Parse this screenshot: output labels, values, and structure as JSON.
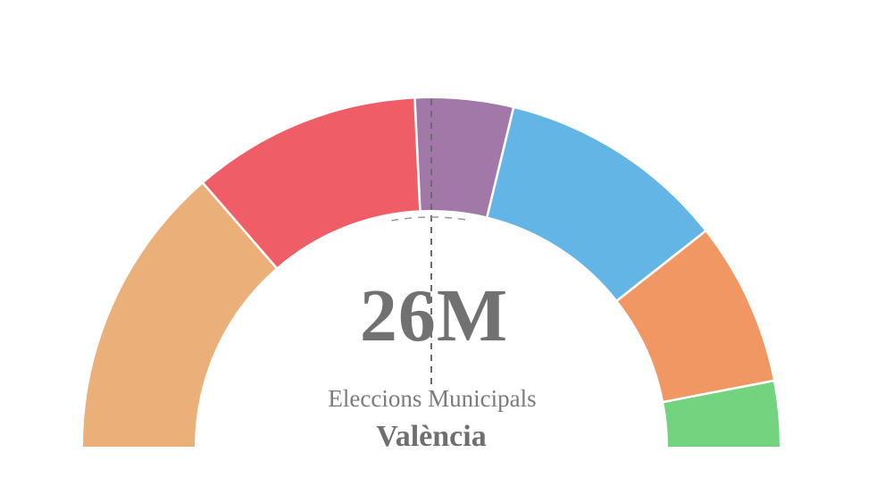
{
  "page": {
    "background": "#FFFFFF"
  },
  "center_label": {
    "headline": "26M",
    "subtitle": "Eleccions Municipals",
    "city": "València"
  },
  "colors": {
    "headline_text": "#717171",
    "subtitle_text": "#7B7B7B",
    "city_text": "#6F6F6F",
    "majority_dashed_line": "#6B6B6B",
    "inner_dashed_arc": "#9A9A9A",
    "segment_gap": "#FFFFFF"
  },
  "chart_data": {
    "type": "pie",
    "subtype": "half-donut-gauge",
    "title": "26M",
    "subtitle": "Eleccions Municipals",
    "region": "València",
    "legend": "none (no labels rendered on segments)",
    "units": "seats (integer values estimated from segment arc angles)",
    "total_value": 33,
    "segments": [
      {
        "label": "sand",
        "value": 9,
        "share_pct": 27.3,
        "color": "#EBAF7A"
      },
      {
        "label": "red",
        "value": 7,
        "share_pct": 21.2,
        "color": "#EF5E66"
      },
      {
        "label": "purple",
        "value": 3,
        "share_pct": 9.1,
        "color": "#A178A7"
      },
      {
        "label": "blue",
        "value": 7,
        "share_pct": 21.2,
        "color": "#63B5E6"
      },
      {
        "label": "orange",
        "value": 5,
        "share_pct": 15.2,
        "color": "#F19764"
      },
      {
        "label": "green",
        "value": 2,
        "share_pct": 6.1,
        "color": "#74D37F"
      }
    ],
    "layout_hints": {
      "shape": "semicircle, flat side down",
      "start_angle_deg": 180,
      "end_angle_deg": 0,
      "inner_radius_ratio": 0.68,
      "white_gaps_between_segments": true,
      "majority_marker": "dashed vertical line at 50% point, from outer rim down to center text",
      "dashed_inner_arc": "short dashed arc just inside inner rim, centered at top"
    }
  }
}
